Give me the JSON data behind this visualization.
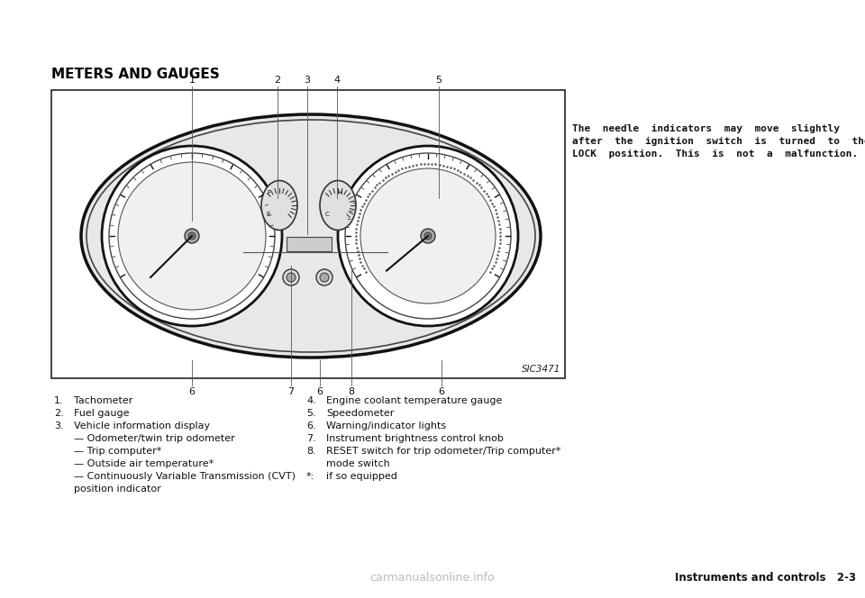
{
  "page_title": "METERS AND GAUGES",
  "right_note_line1": "The  needle  indicators  may  move  slightly",
  "right_note_line2": "after  the  ignition  switch  is  turned  to  the",
  "right_note_line3": "LOCK  position.  This  is  not  a  malfunction.",
  "image_label": "SIC3471",
  "footer_right": "Instruments and controls   2-3",
  "watermark": "carmanualsonline.info",
  "left_items": [
    [
      "1.",
      "Tachometer"
    ],
    [
      "2.",
      "Fuel gauge"
    ],
    [
      "3.",
      "Vehicle information display"
    ],
    [
      "",
      "— Odometer/twin trip odometer"
    ],
    [
      "",
      "— Trip computer*"
    ],
    [
      "",
      "— Outside air temperature*"
    ],
    [
      "",
      "— Continuously Variable Transmission (CVT)"
    ],
    [
      "",
      "position indicator"
    ]
  ],
  "right_items": [
    [
      "4.",
      "Engine coolant temperature gauge"
    ],
    [
      "5.",
      "Speedometer"
    ],
    [
      "6.",
      "Warning/indicator lights"
    ],
    [
      "7.",
      "Instrument brightness control knob"
    ],
    [
      "8.",
      "RESET switch for trip odometer/Trip computer*"
    ],
    [
      "",
      "mode switch"
    ],
    [
      "*:",
      "if so equipped"
    ]
  ],
  "bg_color": "#ffffff",
  "text_color": "#000000",
  "gray_dark": "#333333",
  "gray_mid": "#888888",
  "gray_light": "#cccccc",
  "gray_lighter": "#e8e8e8"
}
